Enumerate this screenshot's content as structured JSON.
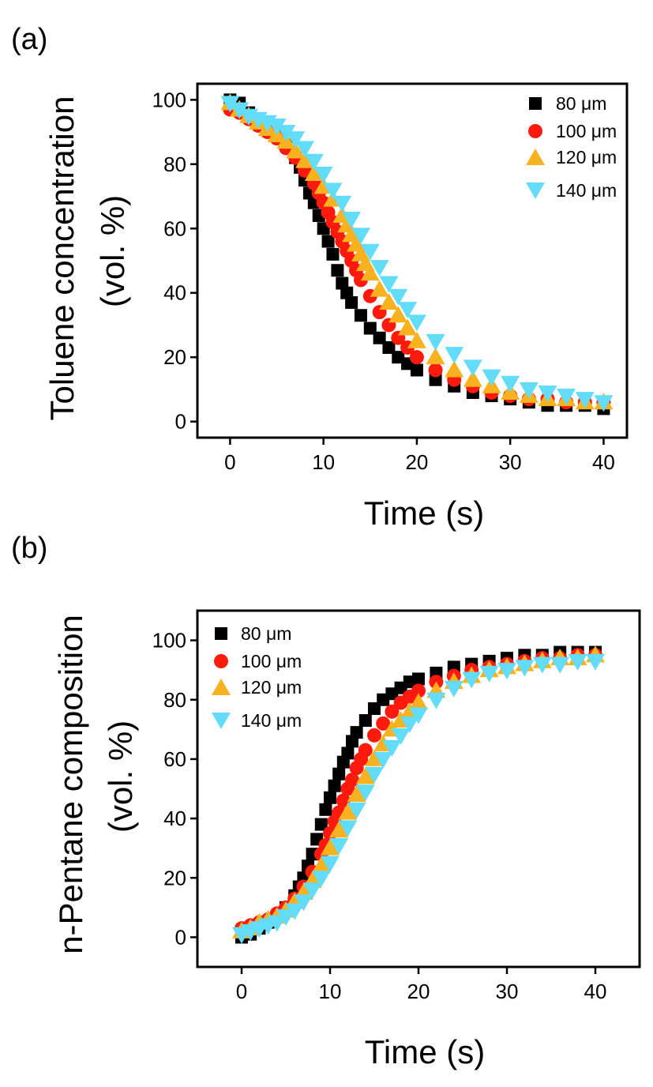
{
  "chart_data": [
    {
      "type": "scatter",
      "panel_label": "(a)",
      "xlabel": "Time (s)",
      "ylabel_line1": "Toluene concentration",
      "ylabel_line2": "(vol. %)",
      "xlim": [
        -3.5,
        42.5
      ],
      "ylim": [
        -5,
        105
      ],
      "xticks": [
        0,
        10,
        20,
        30,
        40
      ],
      "yticks": [
        0,
        20,
        40,
        60,
        80,
        100
      ],
      "legend_position": "top-right",
      "series": [
        {
          "name": "80 μm",
          "marker": "square",
          "color": "#000000",
          "x": [
            0,
            1,
            2,
            3,
            4,
            5,
            6,
            7,
            7.5,
            8,
            8.5,
            9,
            9.5,
            10,
            10.5,
            11,
            11.5,
            12,
            12.5,
            13,
            14,
            15,
            16,
            17,
            18,
            19,
            20,
            22,
            24,
            26,
            28,
            30,
            32,
            34,
            36,
            38,
            40
          ],
          "y": [
            100,
            99,
            96,
            93,
            91,
            89,
            86,
            82,
            79,
            75,
            71,
            68,
            64,
            60,
            56,
            52,
            47,
            43,
            40,
            37,
            33,
            29,
            26,
            23,
            20,
            18,
            16,
            13,
            11,
            9,
            8,
            7,
            6,
            5,
            5,
            5,
            4
          ]
        },
        {
          "name": "100 μm",
          "marker": "circle",
          "color": "#ff1a0d",
          "x": [
            0,
            1,
            2,
            3,
            4,
            5,
            6,
            7,
            8,
            9,
            9.5,
            10,
            10.5,
            11,
            11.5,
            12,
            12.5,
            13,
            13.5,
            14,
            15,
            16,
            17,
            18,
            19,
            20,
            22,
            24,
            26,
            28,
            30,
            32,
            34,
            36,
            38,
            40
          ],
          "y": [
            97,
            96,
            94,
            92,
            90,
            88,
            85,
            82,
            78,
            74,
            71,
            68,
            65,
            62,
            59,
            56,
            53,
            50,
            47,
            44,
            39,
            34,
            30,
            26,
            23,
            20,
            16,
            13,
            11,
            9,
            8,
            7,
            7,
            6,
            6,
            6
          ]
        },
        {
          "name": "120 μm",
          "marker": "triangle-up",
          "color": "#f9b21f",
          "x": [
            0,
            1,
            2,
            3,
            4,
            5,
            6,
            7,
            8,
            9,
            10,
            11,
            12,
            12.5,
            13,
            13.5,
            14,
            14.5,
            15,
            16,
            17,
            18,
            19,
            20,
            22,
            24,
            26,
            28,
            30,
            32,
            34,
            36,
            38,
            40
          ],
          "y": [
            99,
            97,
            95,
            93,
            91,
            89,
            87,
            84,
            81,
            77,
            73,
            69,
            64,
            61,
            58,
            55,
            52,
            49,
            46,
            41,
            37,
            33,
            29,
            25,
            20,
            16,
            13,
            11,
            9,
            8,
            7,
            7,
            6,
            6
          ]
        },
        {
          "name": "140 μm",
          "marker": "triangle-down",
          "color": "#62dcf9",
          "x": [
            0,
            1,
            2,
            3,
            4,
            5,
            6,
            7,
            8,
            9,
            10,
            11,
            12,
            13,
            14,
            15,
            16,
            17,
            18,
            19,
            20,
            22,
            24,
            26,
            28,
            30,
            32,
            34,
            36,
            38,
            40
          ],
          "y": [
            99,
            97,
            95,
            94,
            93,
            92,
            90,
            88,
            85,
            81,
            77,
            72,
            68,
            63,
            58,
            53,
            48,
            43,
            39,
            35,
            31,
            25,
            21,
            17,
            14,
            12,
            10,
            9,
            8,
            7,
            6
          ]
        }
      ]
    },
    {
      "type": "scatter",
      "panel_label": "(b)",
      "xlabel": "Time (s)",
      "ylabel_line1": "n-Pentane composition",
      "ylabel_line2": "(vol. %)",
      "xlim": [
        -5,
        45
      ],
      "ylim": [
        -10,
        110
      ],
      "xticks": [
        0,
        10,
        20,
        30,
        40
      ],
      "yticks": [
        0,
        20,
        40,
        60,
        80,
        100
      ],
      "legend_position": "top-left",
      "series": [
        {
          "name": "80 μm",
          "marker": "square",
          "color": "#000000",
          "x": [
            0,
            1,
            2,
            3,
            4,
            5,
            6,
            6.5,
            7,
            7.5,
            8,
            8.5,
            9,
            9.5,
            10,
            10.5,
            11,
            11.5,
            12,
            12.5,
            13,
            14,
            15,
            16,
            17,
            18,
            19,
            20,
            22,
            24,
            26,
            28,
            30,
            32,
            34,
            36,
            38,
            40
          ],
          "y": [
            0,
            1,
            3,
            5,
            7,
            10,
            14,
            17,
            20,
            24,
            28,
            33,
            38,
            43,
            47,
            51,
            55,
            59,
            62,
            66,
            69,
            73,
            77,
            80,
            82,
            84,
            86,
            87,
            89,
            91,
            92,
            93,
            94,
            95,
            95,
            96,
            96,
            96
          ]
        },
        {
          "name": "100 μm",
          "marker": "circle",
          "color": "#ff1a0d",
          "x": [
            0,
            1,
            2,
            3,
            4,
            5,
            6,
            7,
            8,
            9,
            9.5,
            10,
            10.5,
            11,
            11.5,
            12,
            12.5,
            13,
            13.5,
            14,
            15,
            16,
            17,
            18,
            19,
            20,
            22,
            24,
            26,
            28,
            30,
            32,
            34,
            36,
            38,
            40
          ],
          "y": [
            3,
            4,
            5,
            6,
            8,
            10,
            13,
            17,
            22,
            28,
            31,
            35,
            39,
            42,
            46,
            50,
            53,
            57,
            60,
            63,
            68,
            72,
            76,
            79,
            81,
            83,
            86,
            88,
            90,
            91,
            92,
            93,
            94,
            94,
            95,
            95
          ]
        },
        {
          "name": "120 μm",
          "marker": "triangle-up",
          "color": "#f9b21f",
          "x": [
            0,
            1,
            2,
            3,
            4,
            5,
            6,
            7,
            8,
            9,
            10,
            11,
            12,
            13,
            14,
            15,
            16,
            17,
            18,
            19,
            20,
            22,
            24,
            26,
            28,
            30,
            32,
            34,
            36,
            38,
            40
          ],
          "y": [
            2,
            3,
            5,
            6,
            7,
            9,
            12,
            15,
            19,
            24,
            30,
            36,
            42,
            48,
            54,
            60,
            65,
            70,
            73,
            76,
            79,
            83,
            86,
            88,
            90,
            91,
            92,
            93,
            94,
            94,
            95
          ]
        },
        {
          "name": "140 μm",
          "marker": "triangle-down",
          "color": "#62dcf9",
          "x": [
            0,
            1,
            2,
            3,
            4,
            5,
            6,
            7,
            8,
            9,
            10,
            11,
            12,
            13,
            14,
            15,
            16,
            17,
            18,
            19,
            20,
            22,
            24,
            26,
            28,
            30,
            32,
            34,
            36,
            38,
            40
          ],
          "y": [
            1,
            2,
            3,
            4,
            5,
            7,
            9,
            12,
            16,
            20,
            25,
            31,
            37,
            43,
            49,
            55,
            60,
            64,
            68,
            72,
            75,
            80,
            84,
            87,
            89,
            90,
            91,
            92,
            92,
            93,
            93
          ]
        }
      ]
    }
  ]
}
